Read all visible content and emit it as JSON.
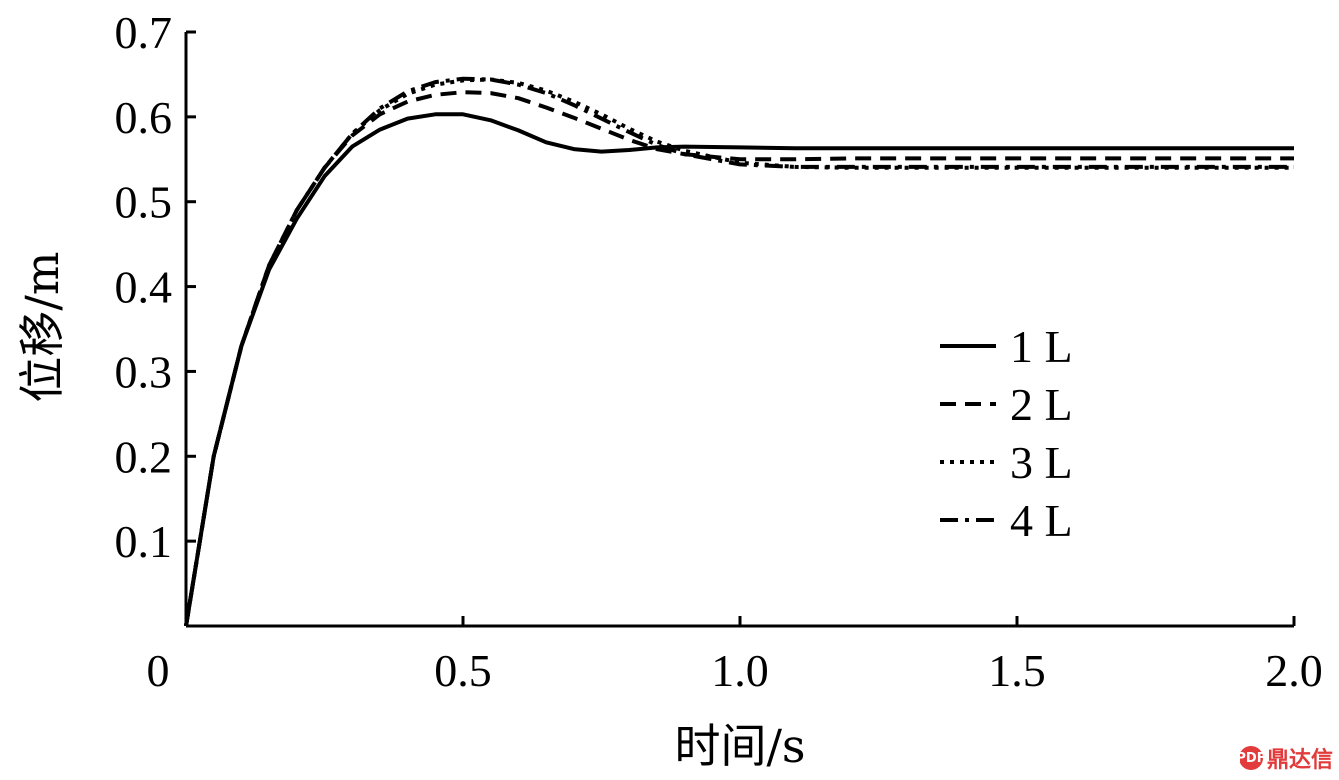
{
  "chart_data": {
    "type": "line",
    "title": "",
    "xlabel": "时间/s",
    "ylabel": "位移/m",
    "xlim": [
      0,
      2.0
    ],
    "ylim": [
      0,
      0.7
    ],
    "x_ticks": [
      {
        "value": 0,
        "label": "0"
      },
      {
        "value": 0.5,
        "label": "0.5"
      },
      {
        "value": 1.0,
        "label": "1.0"
      },
      {
        "value": 1.5,
        "label": "1.5"
      },
      {
        "value": 2.0,
        "label": "2.0"
      }
    ],
    "y_ticks": [
      {
        "value": 0.1,
        "label": "0.1"
      },
      {
        "value": 0.2,
        "label": "0.2"
      },
      {
        "value": 0.3,
        "label": "0.3"
      },
      {
        "value": 0.4,
        "label": "0.4"
      },
      {
        "value": 0.5,
        "label": "0.5"
      },
      {
        "value": 0.6,
        "label": "0.6"
      },
      {
        "value": 0.7,
        "label": "0.7"
      }
    ],
    "grid": false,
    "legend_position": "center-right",
    "series": [
      {
        "name": "1 L",
        "line_style": "solid",
        "color": "#000000",
        "x": [
          0,
          0.05,
          0.1,
          0.15,
          0.2,
          0.25,
          0.3,
          0.35,
          0.4,
          0.45,
          0.5,
          0.55,
          0.6,
          0.65,
          0.7,
          0.75,
          0.8,
          0.85,
          0.9,
          1.0,
          1.1,
          1.2,
          1.3,
          1.4,
          1.5,
          1.6,
          1.7,
          1.8,
          1.9,
          2.0
        ],
        "y": [
          0,
          0.2,
          0.33,
          0.42,
          0.48,
          0.53,
          0.565,
          0.585,
          0.598,
          0.603,
          0.603,
          0.596,
          0.584,
          0.57,
          0.562,
          0.559,
          0.561,
          0.564,
          0.565,
          0.564,
          0.563,
          0.563,
          0.563,
          0.563,
          0.563,
          0.563,
          0.563,
          0.563,
          0.563,
          0.563
        ]
      },
      {
        "name": "2 L",
        "line_style": "dashed",
        "color": "#000000",
        "x": [
          0,
          0.05,
          0.1,
          0.15,
          0.2,
          0.25,
          0.3,
          0.35,
          0.4,
          0.45,
          0.5,
          0.55,
          0.6,
          0.65,
          0.7,
          0.75,
          0.8,
          0.85,
          0.9,
          1.0,
          1.1,
          1.2,
          1.3,
          1.4,
          1.5,
          1.6,
          1.7,
          1.8,
          1.9,
          2.0
        ],
        "y": [
          0,
          0.2,
          0.33,
          0.425,
          0.49,
          0.54,
          0.578,
          0.603,
          0.618,
          0.626,
          0.629,
          0.628,
          0.622,
          0.611,
          0.599,
          0.586,
          0.573,
          0.562,
          0.556,
          0.55,
          0.55,
          0.551,
          0.551,
          0.551,
          0.551,
          0.551,
          0.551,
          0.551,
          0.551,
          0.551
        ]
      },
      {
        "name": "3 L",
        "line_style": "dotted",
        "color": "#000000",
        "x": [
          0,
          0.05,
          0.1,
          0.15,
          0.2,
          0.25,
          0.3,
          0.35,
          0.4,
          0.45,
          0.5,
          0.55,
          0.6,
          0.65,
          0.7,
          0.75,
          0.8,
          0.85,
          0.9,
          1.0,
          1.1,
          1.2,
          1.3,
          1.4,
          1.5,
          1.6,
          1.7,
          1.8,
          1.9,
          2.0
        ],
        "y": [
          0,
          0.2,
          0.33,
          0.425,
          0.49,
          0.54,
          0.58,
          0.608,
          0.627,
          0.638,
          0.643,
          0.644,
          0.64,
          0.631,
          0.618,
          0.603,
          0.586,
          0.571,
          0.56,
          0.546,
          0.541,
          0.54,
          0.54,
          0.54,
          0.54,
          0.54,
          0.54,
          0.54,
          0.54,
          0.54
        ]
      },
      {
        "name": "4 L",
        "line_style": "dash-dot",
        "color": "#000000",
        "x": [
          0,
          0.05,
          0.1,
          0.15,
          0.2,
          0.25,
          0.3,
          0.35,
          0.4,
          0.45,
          0.5,
          0.55,
          0.6,
          0.65,
          0.7,
          0.75,
          0.8,
          0.85,
          0.9,
          1.0,
          1.1,
          1.2,
          1.3,
          1.4,
          1.5,
          1.6,
          1.7,
          1.8,
          1.9,
          2.0
        ],
        "y": [
          0,
          0.2,
          0.33,
          0.425,
          0.49,
          0.54,
          0.58,
          0.61,
          0.63,
          0.641,
          0.645,
          0.644,
          0.638,
          0.628,
          0.614,
          0.598,
          0.582,
          0.567,
          0.556,
          0.544,
          0.541,
          0.541,
          0.541,
          0.541,
          0.541,
          0.541,
          0.541,
          0.541,
          0.541,
          0.541
        ]
      }
    ]
  },
  "watermark": {
    "text": "鼎达信",
    "icon_glyph": "PDF"
  }
}
